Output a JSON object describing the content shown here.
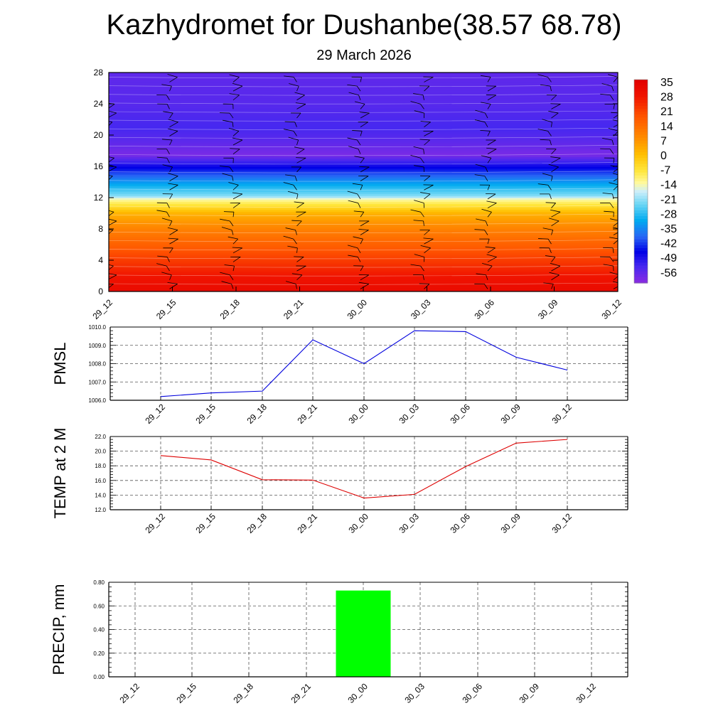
{
  "title": "Kazhydromet for Dushanbe(38.57 68.78)",
  "subtitle": "29 March 2026",
  "time_labels": [
    "29_12",
    "29_15",
    "29_18",
    "29_21",
    "30_00",
    "30_03",
    "30_06",
    "30_09",
    "30_12"
  ],
  "colors": {
    "pmsl_line": "#0000dd",
    "temp_line": "#dd0000",
    "precip_bar": "#00ff00",
    "grid": "#555555"
  },
  "chart_data": [
    {
      "type": "heatmap",
      "name": "upper-air",
      "x_categories": [
        "29_12",
        "29_15",
        "29_18",
        "29_21",
        "30_00",
        "30_03",
        "30_06",
        "30_09",
        "30_12"
      ],
      "y_ticks": [
        0,
        4,
        8,
        12,
        16,
        20,
        24,
        28
      ],
      "ylim": [
        0,
        28
      ],
      "colorbar_labels": [
        "35",
        "28",
        "21",
        "14",
        "7",
        "0",
        "-7",
        "-14",
        "-21",
        "-28",
        "-35",
        "-42",
        "-49",
        "-56"
      ],
      "colorbar_range": [
        -60,
        38
      ],
      "profile_levels": [
        0,
        2,
        4,
        6,
        8,
        10,
        11.8,
        12.2,
        14,
        16,
        17.5,
        19,
        21,
        24,
        28
      ],
      "profile_values": [
        34,
        30,
        24,
        18,
        12,
        4,
        -12,
        -20,
        -32,
        -46,
        -58,
        -55,
        -52,
        -54,
        -55
      ],
      "wind_barbs": true
    },
    {
      "type": "line",
      "name": "PMSL",
      "ylabel": "PMSL",
      "categories": [
        "29_12",
        "29_15",
        "29_18",
        "29_21",
        "30_00",
        "30_03",
        "30_06",
        "30_09",
        "30_12"
      ],
      "values": [
        1006.2,
        1006.4,
        1006.5,
        1009.3,
        1008.0,
        1009.8,
        1009.75,
        1008.35,
        1007.65
      ],
      "ylim": [
        1006.0,
        1010.0
      ],
      "y_ticks": [
        "1006.0",
        "1007.0",
        "1008.0",
        "1009.0",
        "1010.0"
      ]
    },
    {
      "type": "line",
      "name": "TEMP",
      "ylabel": "TEMP at 2 M",
      "categories": [
        "29_12",
        "29_15",
        "29_18",
        "29_21",
        "30_00",
        "30_03",
        "30_06",
        "30_09",
        "30_12"
      ],
      "values": [
        19.4,
        18.8,
        16.1,
        16.05,
        13.6,
        14.1,
        17.9,
        21.1,
        21.6
      ],
      "ylim": [
        12.0,
        22.0
      ],
      "y_ticks": [
        "12.0",
        "14.0",
        "16.0",
        "18.0",
        "20.0",
        "22.0"
      ]
    },
    {
      "type": "bar",
      "name": "PRECIP",
      "ylabel": "PRECIP, mm",
      "categories": [
        "29_12",
        "29_15",
        "29_18",
        "29_21",
        "30_00",
        "30_03",
        "30_06",
        "30_09",
        "30_12"
      ],
      "values": [
        0,
        0,
        0,
        0,
        0.73,
        0,
        0,
        0,
        0
      ],
      "ylim": [
        0,
        0.8
      ],
      "y_ticks": [
        "0.00",
        "0.20",
        "0.40",
        "0.60",
        "0.80"
      ]
    }
  ]
}
